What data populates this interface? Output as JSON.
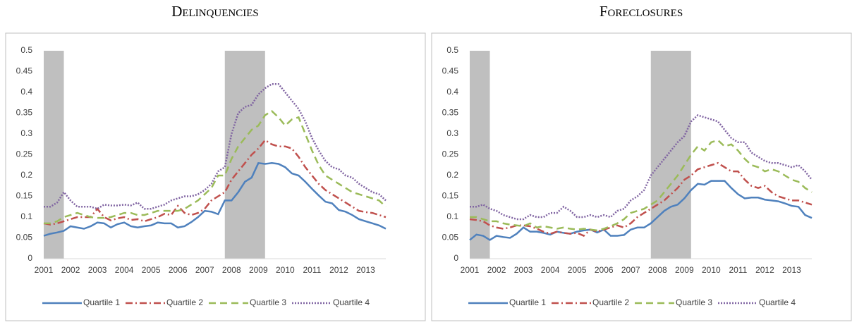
{
  "chart_data": [
    {
      "type": "line",
      "title": "Delinquencies",
      "x": [
        2001,
        2001.25,
        2001.5,
        2001.75,
        2002,
        2002.25,
        2002.5,
        2002.75,
        2003,
        2003.25,
        2003.5,
        2003.75,
        2004,
        2004.25,
        2004.5,
        2004.75,
        2005,
        2005.25,
        2005.5,
        2005.75,
        2006,
        2006.25,
        2006.5,
        2006.75,
        2007,
        2007.25,
        2007.5,
        2007.75,
        2008,
        2008.25,
        2008.5,
        2008.75,
        2009,
        2009.25,
        2009.5,
        2009.75,
        2010,
        2010.25,
        2010.5,
        2010.75,
        2011,
        2011.25,
        2011.5,
        2011.75,
        2012,
        2012.25,
        2012.5,
        2012.75,
        2013,
        2013.25,
        2013.5,
        2013.75
      ],
      "xlim": [
        2001,
        2013.75
      ],
      "xticks": [
        2001,
        2002,
        2003,
        2004,
        2005,
        2006,
        2007,
        2008,
        2009,
        2010,
        2011,
        2012,
        2013
      ],
      "ylim": [
        0,
        0.5
      ],
      "yticks": [
        0,
        0.05,
        0.1,
        0.15,
        0.2,
        0.25,
        0.3,
        0.35,
        0.4,
        0.45,
        0.5
      ],
      "shaded_ranges": [
        [
          2001,
          2001.75
        ],
        [
          2007.75,
          2009.25
        ]
      ],
      "series": [
        {
          "name": "Quartile 1",
          "color": "#4f81bd",
          "line_style": "solid",
          "values": [
            0.055,
            0.06,
            0.063,
            0.067,
            0.078,
            0.075,
            0.072,
            0.078,
            0.087,
            0.085,
            0.075,
            0.083,
            0.087,
            0.078,
            0.075,
            0.078,
            0.08,
            0.087,
            0.085,
            0.085,
            0.075,
            0.078,
            0.088,
            0.1,
            0.115,
            0.113,
            0.107,
            0.14,
            0.14,
            0.16,
            0.185,
            0.195,
            0.23,
            0.228,
            0.23,
            0.228,
            0.22,
            0.205,
            0.2,
            0.185,
            0.168,
            0.152,
            0.137,
            0.133,
            0.117,
            0.113,
            0.105,
            0.095,
            0.09,
            0.085,
            0.08,
            0.072
          ]
        },
        {
          "name": "Quartile 2",
          "color": "#c0504d",
          "line_style": "dashdot",
          "values": [
            0.085,
            0.082,
            0.085,
            0.09,
            0.095,
            0.1,
            0.1,
            0.1,
            0.12,
            0.1,
            0.092,
            0.097,
            0.1,
            0.093,
            0.095,
            0.09,
            0.095,
            0.1,
            0.108,
            0.105,
            0.127,
            0.11,
            0.105,
            0.11,
            0.12,
            0.14,
            0.15,
            0.16,
            0.19,
            0.21,
            0.23,
            0.25,
            0.265,
            0.285,
            0.275,
            0.27,
            0.27,
            0.265,
            0.245,
            0.22,
            0.2,
            0.18,
            0.165,
            0.155,
            0.145,
            0.135,
            0.125,
            0.115,
            0.112,
            0.11,
            0.105,
            0.1
          ]
        },
        {
          "name": "Quartile 3",
          "color": "#9bbb59",
          "line_style": "dashed",
          "values": [
            0.085,
            0.085,
            0.09,
            0.1,
            0.105,
            0.11,
            0.105,
            0.1,
            0.098,
            0.098,
            0.1,
            0.105,
            0.11,
            0.11,
            0.105,
            0.105,
            0.11,
            0.115,
            0.115,
            0.115,
            0.115,
            0.12,
            0.13,
            0.14,
            0.155,
            0.17,
            0.2,
            0.2,
            0.24,
            0.27,
            0.29,
            0.31,
            0.32,
            0.345,
            0.355,
            0.34,
            0.32,
            0.335,
            0.34,
            0.3,
            0.26,
            0.225,
            0.2,
            0.19,
            0.18,
            0.17,
            0.16,
            0.155,
            0.15,
            0.145,
            0.14,
            0.125
          ]
        },
        {
          "name": "Quartile 4",
          "color": "#8064a2",
          "line_style": "dotted",
          "values": [
            0.125,
            0.125,
            0.135,
            0.16,
            0.14,
            0.125,
            0.125,
            0.125,
            0.12,
            0.13,
            0.128,
            0.128,
            0.13,
            0.128,
            0.135,
            0.12,
            0.12,
            0.125,
            0.13,
            0.14,
            0.145,
            0.15,
            0.15,
            0.155,
            0.165,
            0.18,
            0.21,
            0.22,
            0.3,
            0.35,
            0.365,
            0.37,
            0.395,
            0.41,
            0.42,
            0.42,
            0.4,
            0.38,
            0.36,
            0.33,
            0.29,
            0.26,
            0.235,
            0.22,
            0.215,
            0.2,
            0.195,
            0.18,
            0.17,
            0.16,
            0.155,
            0.14
          ]
        }
      ]
    },
    {
      "type": "line",
      "title": "Foreclosures",
      "x": [
        2001,
        2001.25,
        2001.5,
        2001.75,
        2002,
        2002.25,
        2002.5,
        2002.75,
        2003,
        2003.25,
        2003.5,
        2003.75,
        2004,
        2004.25,
        2004.5,
        2004.75,
        2005,
        2005.25,
        2005.5,
        2005.75,
        2006,
        2006.25,
        2006.5,
        2006.75,
        2007,
        2007.25,
        2007.5,
        2007.75,
        2008,
        2008.25,
        2008.5,
        2008.75,
        2009,
        2009.25,
        2009.5,
        2009.75,
        2010,
        2010.25,
        2010.5,
        2010.75,
        2011,
        2011.25,
        2011.5,
        2011.75,
        2012,
        2012.25,
        2012.5,
        2012.75,
        2013,
        2013.25,
        2013.5,
        2013.75
      ],
      "xlim": [
        2001,
        2013.75
      ],
      "xticks": [
        2001,
        2002,
        2003,
        2004,
        2005,
        2006,
        2007,
        2008,
        2009,
        2010,
        2011,
        2012,
        2013
      ],
      "ylim": [
        0,
        0.5
      ],
      "yticks": [
        0,
        0.05,
        0.1,
        0.15,
        0.2,
        0.25,
        0.3,
        0.35,
        0.4,
        0.45,
        0.5
      ],
      "shaded_ranges": [
        [
          2001,
          2001.75
        ],
        [
          2007.75,
          2009.25
        ]
      ],
      "series": [
        {
          "name": "Quartile 1",
          "color": "#4f81bd",
          "line_style": "solid",
          "values": [
            0.045,
            0.058,
            0.055,
            0.045,
            0.055,
            0.052,
            0.05,
            0.06,
            0.075,
            0.065,
            0.065,
            0.062,
            0.058,
            0.065,
            0.062,
            0.06,
            0.065,
            0.068,
            0.07,
            0.063,
            0.07,
            0.055,
            0.055,
            0.057,
            0.07,
            0.075,
            0.075,
            0.085,
            0.1,
            0.115,
            0.125,
            0.13,
            0.145,
            0.165,
            0.18,
            0.178,
            0.187,
            0.187,
            0.187,
            0.17,
            0.155,
            0.145,
            0.147,
            0.147,
            0.142,
            0.14,
            0.138,
            0.133,
            0.127,
            0.125,
            0.105,
            0.098
          ]
        },
        {
          "name": "Quartile 2",
          "color": "#c0504d",
          "line_style": "dashdot",
          "values": [
            0.095,
            0.093,
            0.09,
            0.08,
            0.075,
            0.072,
            0.075,
            0.08,
            0.08,
            0.078,
            0.072,
            0.065,
            0.06,
            0.065,
            0.062,
            0.06,
            0.062,
            0.055,
            0.07,
            0.065,
            0.07,
            0.075,
            0.08,
            0.075,
            0.085,
            0.1,
            0.11,
            0.12,
            0.13,
            0.14,
            0.155,
            0.17,
            0.19,
            0.2,
            0.215,
            0.22,
            0.225,
            0.23,
            0.22,
            0.21,
            0.21,
            0.19,
            0.175,
            0.17,
            0.175,
            0.16,
            0.15,
            0.145,
            0.14,
            0.14,
            0.135,
            0.13
          ]
        },
        {
          "name": "Quartile 3",
          "color": "#9bbb59",
          "line_style": "dashed",
          "values": [
            0.1,
            0.1,
            0.095,
            0.09,
            0.09,
            0.085,
            0.082,
            0.08,
            0.078,
            0.085,
            0.075,
            0.078,
            0.075,
            0.072,
            0.075,
            0.072,
            0.07,
            0.072,
            0.07,
            0.068,
            0.072,
            0.078,
            0.085,
            0.095,
            0.11,
            0.115,
            0.12,
            0.13,
            0.14,
            0.16,
            0.18,
            0.2,
            0.225,
            0.25,
            0.27,
            0.26,
            0.28,
            0.285,
            0.27,
            0.275,
            0.26,
            0.24,
            0.225,
            0.22,
            0.21,
            0.215,
            0.21,
            0.2,
            0.19,
            0.185,
            0.17,
            0.16
          ]
        },
        {
          "name": "Quartile 4",
          "color": "#8064a2",
          "line_style": "dotted",
          "values": [
            0.125,
            0.125,
            0.13,
            0.12,
            0.115,
            0.105,
            0.1,
            0.095,
            0.095,
            0.105,
            0.1,
            0.1,
            0.11,
            0.11,
            0.125,
            0.115,
            0.1,
            0.1,
            0.105,
            0.1,
            0.105,
            0.1,
            0.115,
            0.12,
            0.14,
            0.15,
            0.165,
            0.2,
            0.22,
            0.24,
            0.26,
            0.28,
            0.295,
            0.33,
            0.345,
            0.34,
            0.335,
            0.33,
            0.31,
            0.29,
            0.28,
            0.28,
            0.255,
            0.245,
            0.235,
            0.23,
            0.23,
            0.225,
            0.22,
            0.225,
            0.21,
            0.19
          ]
        }
      ]
    }
  ]
}
